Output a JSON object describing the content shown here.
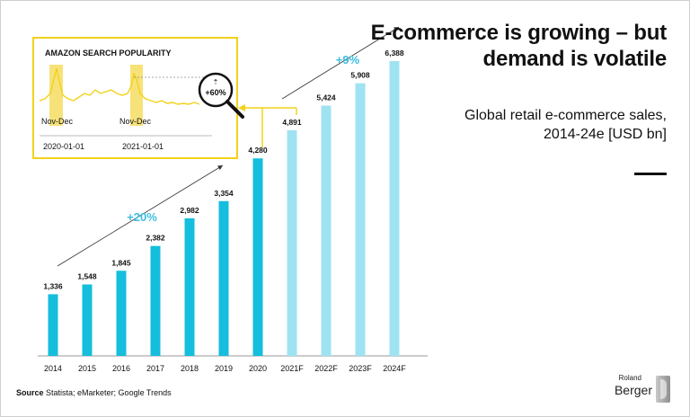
{
  "title": "E-commerce is growing – but demand is volatile",
  "subtitle": "Global retail e-commerce sales, 2014-24e [USD bn]",
  "source_label": "Source",
  "source_text": "Statista; eMarketer; Google Trends",
  "logo": {
    "small": "Roland",
    "big": "Berger"
  },
  "colors": {
    "actual": "#14bedc",
    "forecast": "#9fe3f2",
    "inset_border": "#f2d21a",
    "highlight": "#f7e27a",
    "accent_text": "#3dbde0"
  },
  "chart_data": {
    "type": "bar",
    "categories": [
      "2014",
      "2015",
      "2016",
      "2017",
      "2018",
      "2019",
      "2020",
      "2021F",
      "2022F",
      "2023F",
      "2024F"
    ],
    "values": [
      1336,
      1548,
      1845,
      2382,
      2982,
      3354,
      4280,
      4891,
      5424,
      5908,
      6388
    ],
    "value_labels": [
      "1,336",
      "1,548",
      "1,845",
      "2,382",
      "2,982",
      "3,354",
      "4,280",
      "4,891",
      "5,424",
      "5,908",
      "6,388"
    ],
    "forecast_from_index": 7,
    "growth_annotations": [
      {
        "label": "+20%",
        "period": "2014-2020"
      },
      {
        "label": "+9%",
        "period": "2021F-2024F"
      }
    ],
    "inset": {
      "title": "AMAZON SEARCH POPULARITY",
      "highlight_label": "Nov-Dec",
      "x_labels": [
        "2020-01-01",
        "2021-01-01"
      ],
      "badge": "+60%"
    }
  }
}
